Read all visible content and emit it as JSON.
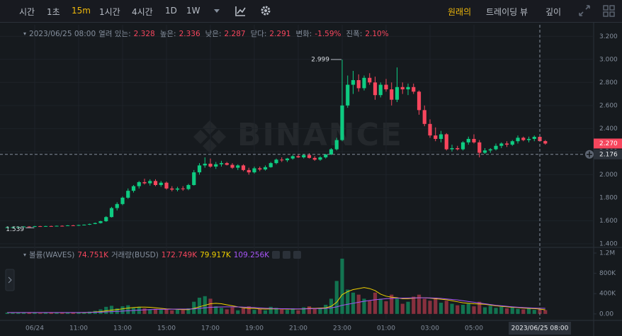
{
  "toolbar": {
    "intervals": [
      "시간",
      "1초",
      "15m",
      "1시간",
      "4시간",
      "1D",
      "1W"
    ],
    "active_interval": 2,
    "views": [
      "원래의",
      "트레이딩 뷰",
      "깊이"
    ],
    "active_view": 0
  },
  "chart_data": [
    {
      "type": "candlestick",
      "watermark": "BINANCE",
      "up_color": "#0ecb81",
      "down_color": "#f6465d",
      "grid": true,
      "header": {
        "time": "2023/06/25 08:00",
        "fields": [
          {
            "name": "열려 있는:",
            "value": 2.328
          },
          {
            "name": "높은:",
            "value": 2.336
          },
          {
            "name": "낮은:",
            "value": 2.287
          },
          {
            "name": "닫다:",
            "value": 2.291
          },
          {
            "name": "변화:",
            "value": {
              "value": -1.59,
              "label": "-1.59%"
            }
          },
          {
            "name": "진폭:",
            "value": {
              "value": 2.1,
              "label": "2.10%"
            }
          }
        ]
      },
      "ylim": [
        1.375,
        3.3
      ],
      "yticks": [
        {
          "value": 1.4,
          "label": "1.400"
        },
        {
          "value": 1.6,
          "label": "1.600"
        },
        {
          "value": 1.8,
          "label": "1.800"
        },
        {
          "value": 2.0,
          "label": "2.000"
        },
        {
          "value": 2.2,
          "label": "2.200"
        },
        {
          "value": 2.4,
          "label": "2.400"
        },
        {
          "value": 2.6,
          "label": "2.600"
        },
        {
          "value": 2.8,
          "label": "2.800"
        },
        {
          "value": 3.0,
          "label": "3.000"
        },
        {
          "value": 3.2,
          "label": "3.200"
        }
      ],
      "high_marker": 2.999,
      "low_marker": 1.539,
      "last_price": {
        "value": 2.27,
        "label": "2.270"
      },
      "crosshair": {
        "value": 2.176,
        "label": "2.176"
      },
      "open": [
        1.541,
        1.543,
        1.544,
        1.546,
        1.55,
        1.548,
        1.553,
        1.551,
        1.554,
        1.552,
        1.556,
        1.555,
        1.56,
        1.558,
        1.563,
        1.566,
        1.572,
        1.58,
        1.596,
        1.632,
        1.71,
        1.745,
        1.8,
        1.86,
        1.9,
        1.935,
        1.925,
        1.945,
        1.91,
        1.93,
        1.88,
        1.87,
        1.88,
        1.875,
        1.91,
        2.02,
        2.08,
        2.095,
        2.07,
        2.09,
        2.1,
        2.085,
        2.06,
        2.08,
        2.04,
        2.02,
        2.055,
        2.045,
        2.065,
        2.1,
        2.13,
        2.125,
        2.14,
        2.16,
        2.15,
        2.17,
        2.145,
        2.13,
        2.15,
        2.175,
        2.22,
        2.3,
        2.6,
        2.78,
        2.82,
        2.75,
        2.84,
        2.8,
        2.69,
        2.78,
        2.74,
        2.65,
        2.76,
        2.74,
        2.76,
        2.72,
        2.56,
        2.44,
        2.34,
        2.31,
        2.35,
        2.22,
        2.23,
        2.22,
        2.28,
        2.31,
        2.28,
        2.19,
        2.21,
        2.22,
        2.25,
        2.27,
        2.26,
        2.29,
        2.32,
        2.3,
        2.31,
        2.328,
        2.291
      ],
      "high": [
        1.545,
        1.546,
        1.548,
        1.552,
        1.553,
        1.555,
        1.556,
        1.556,
        1.557,
        1.558,
        1.56,
        1.562,
        1.564,
        1.566,
        1.568,
        1.575,
        1.585,
        1.6,
        1.64,
        1.72,
        1.76,
        1.81,
        1.88,
        1.91,
        1.945,
        1.965,
        1.96,
        1.96,
        1.945,
        1.94,
        1.9,
        1.895,
        1.9,
        1.92,
        2.04,
        2.1,
        2.15,
        2.14,
        2.11,
        2.12,
        2.11,
        2.1,
        2.09,
        2.09,
        2.06,
        2.07,
        2.07,
        2.08,
        2.11,
        2.14,
        2.15,
        2.145,
        2.17,
        2.175,
        2.18,
        2.185,
        2.16,
        2.16,
        2.18,
        2.23,
        2.32,
        2.999,
        2.86,
        2.9,
        2.87,
        2.86,
        2.88,
        2.85,
        2.8,
        2.83,
        2.8,
        2.93,
        2.8,
        2.79,
        2.79,
        2.73,
        2.6,
        2.48,
        2.41,
        2.38,
        2.36,
        2.26,
        2.25,
        2.29,
        2.33,
        2.35,
        2.3,
        2.23,
        2.23,
        2.27,
        2.28,
        2.29,
        2.3,
        2.34,
        2.33,
        2.33,
        2.34,
        2.336,
        2.3
      ],
      "low": [
        1.539,
        1.54,
        1.541,
        1.544,
        1.546,
        1.546,
        1.549,
        1.548,
        1.55,
        1.55,
        1.552,
        1.553,
        1.556,
        1.556,
        1.559,
        1.563,
        1.57,
        1.576,
        1.59,
        1.628,
        1.69,
        1.735,
        1.79,
        1.845,
        1.88,
        1.915,
        1.905,
        1.9,
        1.895,
        1.87,
        1.855,
        1.855,
        1.86,
        1.865,
        1.905,
        2.0,
        2.06,
        2.06,
        2.05,
        2.07,
        2.08,
        2.05,
        2.04,
        2.03,
        2.0,
        2.01,
        2.03,
        2.035,
        2.06,
        2.09,
        2.11,
        2.11,
        2.13,
        2.145,
        2.14,
        2.14,
        2.12,
        2.12,
        2.14,
        2.17,
        2.21,
        2.29,
        2.58,
        2.7,
        2.72,
        2.73,
        2.78,
        2.65,
        2.67,
        2.72,
        2.6,
        2.63,
        2.7,
        2.69,
        2.7,
        2.52,
        2.42,
        2.32,
        2.29,
        2.28,
        2.21,
        2.2,
        2.21,
        2.21,
        2.26,
        2.27,
        2.15,
        2.18,
        2.19,
        2.21,
        2.23,
        2.24,
        2.25,
        2.27,
        2.29,
        2.28,
        2.29,
        2.287,
        2.26
      ],
      "close": [
        1.543,
        1.544,
        1.546,
        1.55,
        1.548,
        1.553,
        1.551,
        1.554,
        1.552,
        1.556,
        1.555,
        1.56,
        1.558,
        1.563,
        1.566,
        1.572,
        1.58,
        1.596,
        1.632,
        1.71,
        1.745,
        1.8,
        1.86,
        1.9,
        1.935,
        1.925,
        1.945,
        1.91,
        1.93,
        1.88,
        1.87,
        1.88,
        1.875,
        1.91,
        2.02,
        2.08,
        2.095,
        2.07,
        2.09,
        2.1,
        2.085,
        2.06,
        2.08,
        2.04,
        2.02,
        2.055,
        2.045,
        2.065,
        2.1,
        2.13,
        2.125,
        2.14,
        2.16,
        2.15,
        2.17,
        2.145,
        2.13,
        2.15,
        2.175,
        2.22,
        2.3,
        2.6,
        2.78,
        2.82,
        2.75,
        2.84,
        2.8,
        2.69,
        2.78,
        2.74,
        2.65,
        2.76,
        2.74,
        2.76,
        2.72,
        2.56,
        2.44,
        2.34,
        2.31,
        2.35,
        2.22,
        2.23,
        2.22,
        2.28,
        2.31,
        2.28,
        2.19,
        2.21,
        2.22,
        2.25,
        2.27,
        2.26,
        2.29,
        2.32,
        2.3,
        2.31,
        2.328,
        2.291,
        2.27
      ]
    },
    {
      "type": "bar",
      "legend": [
        {
          "name": "볼륨(WAVES)",
          "value": {
            "value": 74751,
            "label": "74.751K"
          },
          "color": "#f6465d"
        },
        {
          "name": "거래량(BUSD)",
          "value": {
            "value": 172749,
            "label": "172.749K"
          },
          "color": "#f6465d"
        }
      ],
      "categories": [
        null,
        null,
        null,
        null,
        null,
        "06/24",
        null,
        null,
        null,
        null,
        null,
        null,
        null,
        "11:00",
        null,
        null,
        null,
        null,
        null,
        null,
        null,
        "13:00",
        null,
        null,
        null,
        null,
        null,
        null,
        null,
        "15:00",
        null,
        null,
        null,
        null,
        null,
        null,
        null,
        "17:00",
        null,
        null,
        null,
        null,
        null,
        null,
        null,
        "19:00",
        null,
        null,
        null,
        null,
        null,
        null,
        null,
        "21:00",
        null,
        null,
        null,
        null,
        null,
        null,
        null,
        "23:00",
        null,
        null,
        null,
        null,
        null,
        null,
        null,
        "01:00",
        null,
        null,
        null,
        null,
        null,
        null,
        null,
        "03:00",
        null,
        null,
        null,
        null,
        null,
        null,
        null,
        "05:00",
        null,
        null,
        null,
        null,
        null,
        null,
        null,
        null,
        null,
        null,
        null,
        "2023/06/25 08:00",
        null
      ],
      "crosshair_at": 97,
      "ylim": [
        -100000,
        1270000
      ],
      "yticks": [
        {
          "value": 0,
          "label": "0.00"
        },
        {
          "value": 400000,
          "label": "400K"
        },
        {
          "value": 800000,
          "label": "800K"
        },
        {
          "value": 1200000,
          "label": "1.2M"
        }
      ],
      "values": [
        25000,
        18000,
        22000,
        30000,
        20000,
        28000,
        15000,
        24000,
        20000,
        26000,
        18000,
        30000,
        22000,
        35000,
        28000,
        45000,
        60000,
        90000,
        140000,
        160000,
        110000,
        150000,
        170000,
        120000,
        140000,
        110000,
        90000,
        100000,
        80000,
        95000,
        70000,
        85000,
        75000,
        110000,
        240000,
        320000,
        350000,
        300000,
        150000,
        120000,
        90000,
        130000,
        70000,
        110000,
        150000,
        80000,
        100000,
        70000,
        140000,
        120000,
        90000,
        80000,
        110000,
        70000,
        130000,
        150000,
        100000,
        120000,
        180000,
        300000,
        650000,
        1090000,
        480000,
        420000,
        380000,
        300000,
        260000,
        420000,
        300000,
        250000,
        380000,
        300000,
        200000,
        240000,
        340000,
        380000,
        300000,
        260000,
        320000,
        220000,
        260000,
        200000,
        170000,
        180000,
        200000,
        150000,
        240000,
        130000,
        160000,
        120000,
        140000,
        110000,
        130000,
        100000,
        90000,
        110000,
        80000,
        95000,
        74751
      ],
      "lines": [
        {
          "color": "#f0d000",
          "last": {
            "value": 79917,
            "label": "79.917K"
          },
          "values": [
            25000,
            25000,
            25000,
            25000,
            25000,
            25000,
            25000,
            25000,
            25000,
            25000,
            25000,
            25000,
            25000,
            25000,
            25000,
            30000,
            38000,
            45000,
            60000,
            75000,
            85000,
            100000,
            115000,
            125000,
            135000,
            135000,
            130000,
            120000,
            110000,
            100000,
            95000,
            90000,
            85000,
            85000,
            110000,
            140000,
            170000,
            200000,
            210000,
            200000,
            180000,
            160000,
            140000,
            120000,
            110000,
            110000,
            100000,
            95000,
            100000,
            100000,
            100000,
            95000,
            95000,
            95000,
            100000,
            110000,
            110000,
            115000,
            120000,
            150000,
            230000,
            380000,
            440000,
            480000,
            500000,
            520000,
            500000,
            460000,
            390000,
            350000,
            330000,
            320000,
            300000,
            300000,
            310000,
            320000,
            320000,
            310000,
            300000,
            290000,
            280000,
            260000,
            240000,
            220000,
            210000,
            200000,
            195000,
            190000,
            175000,
            160000,
            150000,
            140000,
            130000,
            125000,
            115000,
            110000,
            105000,
            95000,
            79917
          ]
        },
        {
          "color": "#a855f7",
          "last": {
            "value": 109256,
            "label": "109.256K"
          },
          "values": [
            28000,
            28000,
            28000,
            28000,
            28000,
            28000,
            28000,
            28000,
            28000,
            28000,
            28000,
            28000,
            28000,
            28000,
            29000,
            30000,
            32000,
            35000,
            40000,
            45000,
            50000,
            55000,
            62000,
            68000,
            75000,
            80000,
            85000,
            88000,
            90000,
            92000,
            94000,
            95000,
            95000,
            96000,
            100000,
            110000,
            120000,
            130000,
            135000,
            138000,
            140000,
            140000,
            138000,
            135000,
            130000,
            125000,
            118000,
            112000,
            108000,
            105000,
            103000,
            102000,
            100000,
            100000,
            100000,
            102000,
            104000,
            106000,
            110000,
            120000,
            140000,
            170000,
            190000,
            210000,
            230000,
            250000,
            265000,
            280000,
            290000,
            300000,
            305000,
            310000,
            312000,
            314000,
            315000,
            318000,
            318000,
            316000,
            312000,
            305000,
            295000,
            285000,
            275000,
            260000,
            245000,
            230000,
            215000,
            200000,
            185000,
            170000,
            160000,
            150000,
            140000,
            132000,
            125000,
            120000,
            115000,
            112000,
            109256
          ]
        }
      ]
    }
  ]
}
